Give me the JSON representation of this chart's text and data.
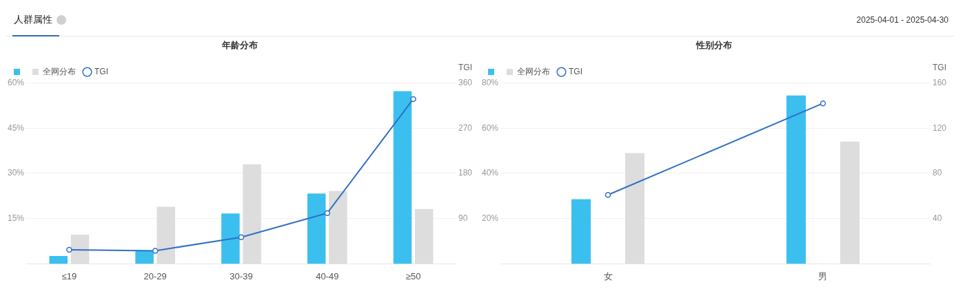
{
  "chart_data": [
    {
      "type": "other",
      "title": "人群属性",
      "annotations": [
        "2025-04-01 - 2025-04-30"
      ]
    },
    {
      "type": "bar",
      "title": "年龄分布",
      "categories": [
        "≤19",
        "20-29",
        "30-39",
        "40-49",
        "≥50"
      ],
      "y2label": "TGI",
      "legend": "top left",
      "grid": "y",
      "marker": "circle",
      "ylim": [
        0,
        60
      ],
      "yticks": [
        {
          "value": 15,
          "label": "15%"
        },
        {
          "value": 30,
          "label": "30%"
        },
        {
          "value": 45,
          "label": "45%"
        },
        {
          "value": 60,
          "label": "60%"
        }
      ],
      "y2lim": [
        0,
        360
      ],
      "y2ticks": [
        90,
        180,
        270,
        360
      ],
      "series": [
        {
          "color": "#3bbfef",
          "values": [
            2.6,
            4.4,
            16.7,
            23.3,
            57.3
          ]
        },
        {
          "name": "全网分布",
          "color": "#dddddd",
          "values": [
            9.7,
            18.9,
            33,
            24.2,
            18.2
          ]
        },
        {
          "name": "TGI",
          "type": "line",
          "axis": "y2",
          "color": "#2f6fc6",
          "values": [
            28,
            26,
            53,
            101,
            328
          ]
        }
      ]
    },
    {
      "type": "bar",
      "title": "性别分布",
      "categories": [
        "女",
        "男"
      ],
      "y2label": "TGI",
      "legend": "top left",
      "grid": "y",
      "marker": "circle",
      "ylim": [
        0,
        80
      ],
      "yticks": [
        {
          "value": 20,
          "label": "20%"
        },
        {
          "value": 40,
          "label": "40%"
        },
        {
          "value": 60,
          "label": "60%"
        },
        {
          "value": 80,
          "label": "80%"
        }
      ],
      "y2lim": [
        0,
        160
      ],
      "y2ticks": [
        40,
        80,
        120,
        160
      ],
      "series": [
        {
          "color": "#3bbfef",
          "values": [
            28.6,
            74.5
          ]
        },
        {
          "name": "全网分布",
          "color": "#dddddd",
          "values": [
            49,
            54.1
          ]
        },
        {
          "name": "TGI",
          "type": "line",
          "axis": "y2",
          "color": "#2f6fc6",
          "values": [
            61,
            142
          ]
        }
      ]
    }
  ]
}
